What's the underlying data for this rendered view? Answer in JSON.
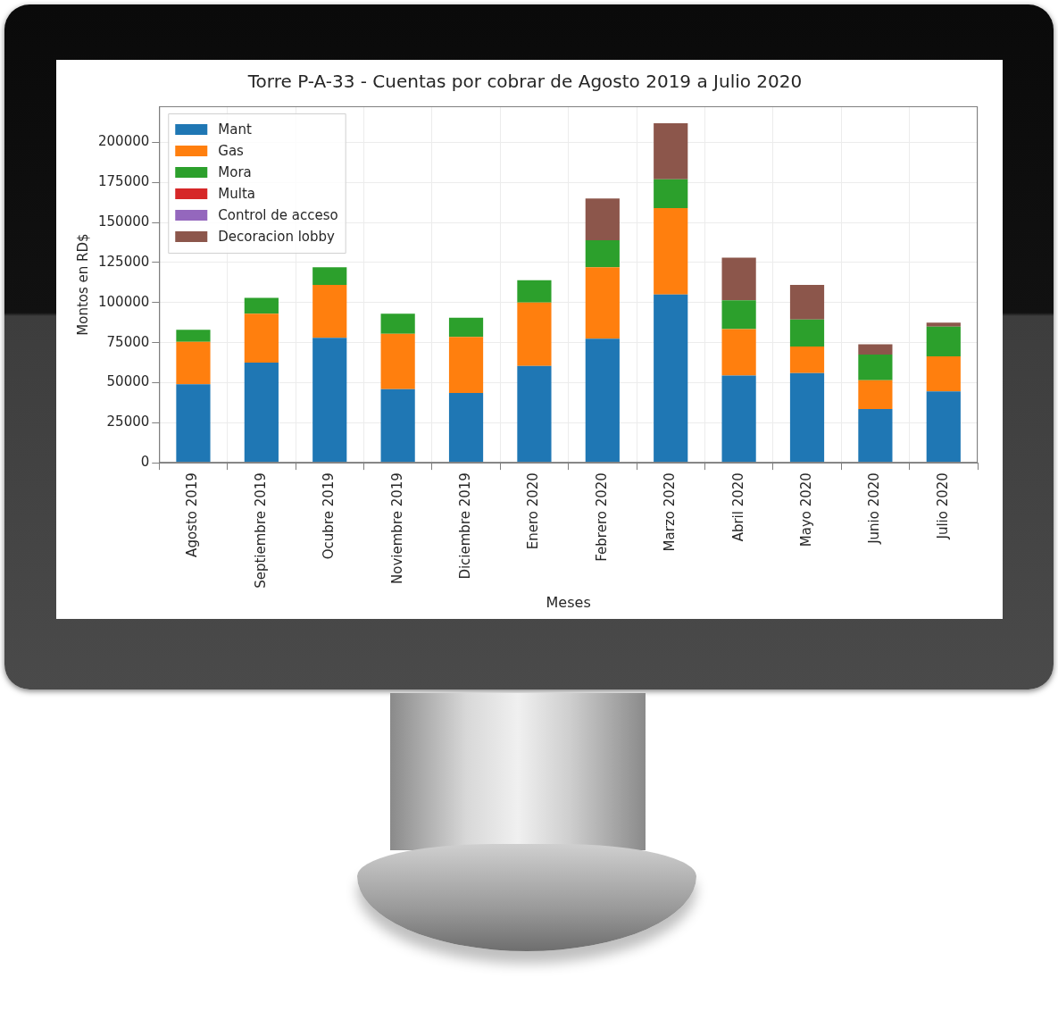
{
  "chart_data": {
    "type": "bar",
    "title": "Torre P-A-33 - Cuentas por cobrar de Agosto 2019 a Julio 2020",
    "xlabel": "Meses",
    "ylabel": "Montos en RD$",
    "categories": [
      "Agosto 2019",
      "Septiembre 2019",
      "Ocubre 2019",
      "Noviembre 2019",
      "Diciembre 2019",
      "Enero 2020",
      "Febrero 2020",
      "Marzo 2020",
      "Abril 2020",
      "Mayo 2020",
      "Junio 2020",
      "Julio 2020"
    ],
    "series": [
      {
        "name": "Mant",
        "color": "#1f77b4",
        "values": [
          49000,
          62500,
          78000,
          46000,
          43500,
          60500,
          77500,
          105000,
          54500,
          56000,
          33500,
          44500
        ]
      },
      {
        "name": "Gas",
        "color": "#ff7f0e",
        "values": [
          26500,
          30500,
          33000,
          34500,
          35000,
          39500,
          44500,
          54000,
          29000,
          16500,
          18000,
          22000
        ]
      },
      {
        "name": "Mora",
        "color": "#2ca02c",
        "values": [
          7500,
          10000,
          11000,
          12500,
          12000,
          14000,
          17000,
          18000,
          18000,
          17000,
          16000,
          18500
        ]
      },
      {
        "name": "Multa",
        "color": "#d62728",
        "values": [
          0,
          0,
          0,
          0,
          0,
          0,
          0,
          0,
          0,
          0,
          0,
          0
        ]
      },
      {
        "name": "Control de acceso",
        "color": "#9467bd",
        "values": [
          0,
          0,
          0,
          0,
          0,
          0,
          0,
          0,
          0,
          0,
          0,
          0
        ]
      },
      {
        "name": "Decoracion lobby",
        "color": "#8c564b",
        "values": [
          0,
          0,
          0,
          0,
          0,
          0,
          26000,
          35000,
          26500,
          21500,
          6500,
          2500
        ]
      }
    ],
    "ylim": [
      0,
      222600
    ],
    "yticks": [
      0,
      25000,
      50000,
      75000,
      100000,
      125000,
      150000,
      175000,
      200000
    ],
    "grid": true,
    "stacked": true,
    "legend": "upper left"
  }
}
